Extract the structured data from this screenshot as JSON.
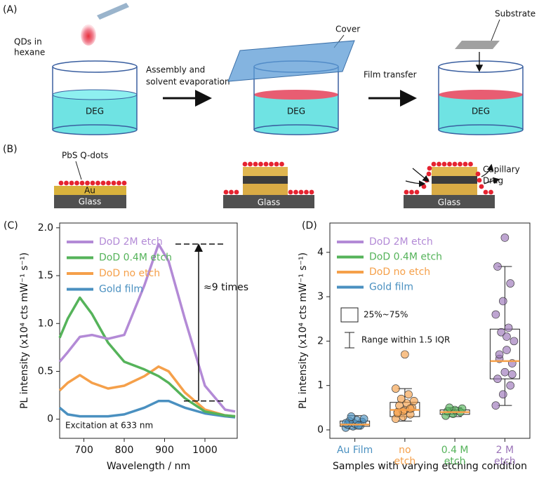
{
  "schematic": {
    "panel_a": "(A)",
    "panel_b": "(B)",
    "qds_label": [
      "QDs in",
      "hexane"
    ],
    "liquid": [
      "DEG",
      "DEG",
      "DEG"
    ],
    "cover": "Cover",
    "substrate": "Substrate",
    "step1": [
      "Assembly and",
      "solvent evaporation"
    ],
    "step2": "Film transfer",
    "pbs_label": "PbS Q-dots",
    "au": "Au",
    "glass": [
      "Glass",
      "Glass",
      "Glass"
    ],
    "capillary": [
      "Capillary",
      "Drag"
    ]
  },
  "chart_data": [
    {
      "type": "line",
      "panel": "(C)",
      "xlabel": "Wavelength / nm",
      "ylabel": "PL intensity (x10⁴ cts mW⁻¹ s⁻¹)",
      "annotations": [
        "≈9 times",
        "Excitation at 633 nm"
      ],
      "x": [
        640,
        660,
        690,
        720,
        760,
        800,
        850,
        885,
        910,
        950,
        1000,
        1050,
        1075
      ],
      "series": [
        {
          "name": "DoD 2M etch",
          "color": "#b38ad6",
          "values": [
            0.6,
            0.7,
            0.86,
            0.88,
            0.84,
            0.88,
            1.4,
            1.83,
            1.65,
            1.05,
            0.35,
            0.1,
            0.08
          ]
        },
        {
          "name": "DoD 0.4M etch",
          "color": "#55b35a",
          "values": [
            0.85,
            1.05,
            1.27,
            1.1,
            0.8,
            0.6,
            0.52,
            0.45,
            0.38,
            0.22,
            0.08,
            0.04,
            0.03
          ]
        },
        {
          "name": "DoD no etch",
          "color": "#f5a04a",
          "values": [
            0.3,
            0.38,
            0.46,
            0.38,
            0.32,
            0.35,
            0.45,
            0.55,
            0.5,
            0.28,
            0.1,
            0.04,
            0.03
          ]
        },
        {
          "name": "Gold film",
          "color": "#4a90c0",
          "values": [
            0.12,
            0.05,
            0.03,
            0.03,
            0.03,
            0.05,
            0.12,
            0.19,
            0.19,
            0.12,
            0.06,
            0.03,
            0.02
          ]
        }
      ],
      "xlim": [
        640,
        1080
      ],
      "xticks": [
        700,
        800,
        900,
        1000
      ],
      "ylim": [
        -0.2,
        2.05
      ],
      "yticks": [
        0,
        0.5,
        {
          "value": 1,
          "label": "1.0"
        },
        1.5,
        {
          "value": 2,
          "label": "2.0"
        }
      ],
      "legend": "upper left"
    },
    {
      "type": "box",
      "panel": "(D)",
      "xlabel": "Samples with varying etching condition",
      "ylabel": "PL intensity (x10⁴ cts mW⁻¹ s⁻¹)",
      "categories": [
        [
          "Au Film"
        ],
        [
          "no",
          "etch"
        ],
        [
          "0.4 M",
          "etch"
        ],
        [
          "2 M",
          "etch"
        ]
      ],
      "category_colors": [
        "#4a90c0",
        "#f5a04a",
        "#55b35a",
        "#9b74b8"
      ],
      "series": [
        {
          "name": "DoD 2M etch",
          "color": "#b38ad6"
        },
        {
          "name": "DoD 0.4M etch",
          "color": "#55b35a"
        },
        {
          "name": "DoD no etch",
          "color": "#f5a04a"
        },
        {
          "name": "Gold film",
          "color": "#4a90c0"
        }
      ],
      "box_legend": [
        "25%~75%",
        "Range within 1.5 IQR"
      ],
      "boxes": [
        {
          "whislo": 0.02,
          "q1": 0.08,
          "med": 0.12,
          "q3": 0.2,
          "whishi": 0.32,
          "points": [
            0.05,
            0.08,
            0.1,
            0.12,
            0.14,
            0.18,
            0.2,
            0.22,
            0.25,
            0.3,
            0.1,
            0.15
          ]
        },
        {
          "whislo": 0.2,
          "q1": 0.3,
          "med": 0.45,
          "q3": 0.62,
          "whishi": 0.93,
          "points": [
            0.25,
            0.3,
            0.35,
            0.4,
            0.45,
            0.5,
            0.55,
            0.6,
            0.65,
            0.7,
            0.8,
            0.93,
            0.42,
            0.48,
            0.38,
            1.7
          ]
        },
        {
          "whislo": 0.3,
          "q1": 0.35,
          "med": 0.4,
          "q3": 0.45,
          "whishi": 0.5,
          "points": [
            0.32,
            0.36,
            0.4,
            0.42,
            0.45,
            0.48,
            0.5
          ]
        },
        {
          "whislo": 0.55,
          "q1": 1.15,
          "med": 1.55,
          "q3": 2.27,
          "whishi": 3.68,
          "points": [
            0.55,
            0.8,
            1.0,
            1.15,
            1.3,
            1.5,
            1.6,
            1.8,
            2.0,
            2.2,
            2.3,
            2.6,
            2.9,
            3.3,
            3.68,
            4.33,
            1.25,
            1.7,
            2.1
          ]
        }
      ],
      "median_color": "#f5a04a",
      "ylim": [
        -0.19,
        4.66
      ],
      "yticks": [
        0,
        1,
        2,
        3,
        4
      ]
    }
  ]
}
